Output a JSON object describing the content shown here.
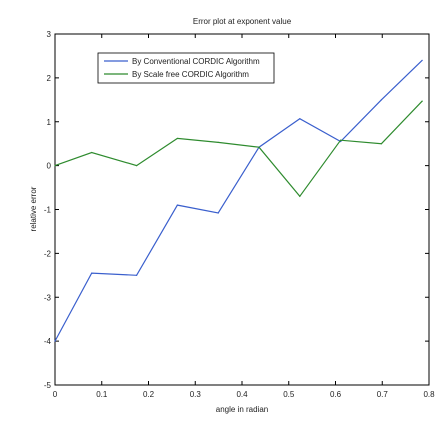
{
  "chart_data": {
    "type": "line",
    "title": "Error plot at exponent value",
    "xlabel": "angle in radian",
    "ylabel": "relative error",
    "xlim": [
      0,
      0.8
    ],
    "ylim": [
      -5,
      3
    ],
    "xticks": [
      0,
      0.1,
      0.2,
      0.3,
      0.4,
      0.5,
      0.6,
      0.7,
      0.8
    ],
    "xtick_labels": [
      "0",
      "0.1",
      "0.2",
      "0.3",
      "0.4",
      "0.5",
      "0.6",
      "0.7",
      "0.8"
    ],
    "yticks": [
      -5,
      -4,
      -3,
      -2,
      -1,
      0,
      1,
      2,
      3
    ],
    "ytick_labels": [
      "-5",
      "-4",
      "-3",
      "-2",
      "-1",
      "0",
      "1",
      "2",
      "3"
    ],
    "grid": false,
    "legend_position": "top-left",
    "series": [
      {
        "name": "By Conventional CORDIC Algorithm",
        "color": "#3a5fcd",
        "x": [
          0,
          0.0785,
          0.1745,
          0.2618,
          0.3491,
          0.4363,
          0.5236,
          0.6109,
          0.6981,
          0.7854
        ],
        "y": [
          -4.0,
          -2.45,
          -2.5,
          -0.9,
          -1.08,
          0.42,
          1.07,
          0.55,
          1.5,
          2.4
        ]
      },
      {
        "name": "By Scale free CORDIC Algorithm",
        "color": "#2e8b2e",
        "x": [
          0,
          0.0785,
          0.1745,
          0.2618,
          0.3491,
          0.4363,
          0.5236,
          0.6109,
          0.6981,
          0.7854
        ],
        "y": [
          0.0,
          0.3,
          0.0,
          0.62,
          0.53,
          0.42,
          -0.7,
          0.58,
          0.5,
          1.47
        ]
      }
    ]
  }
}
